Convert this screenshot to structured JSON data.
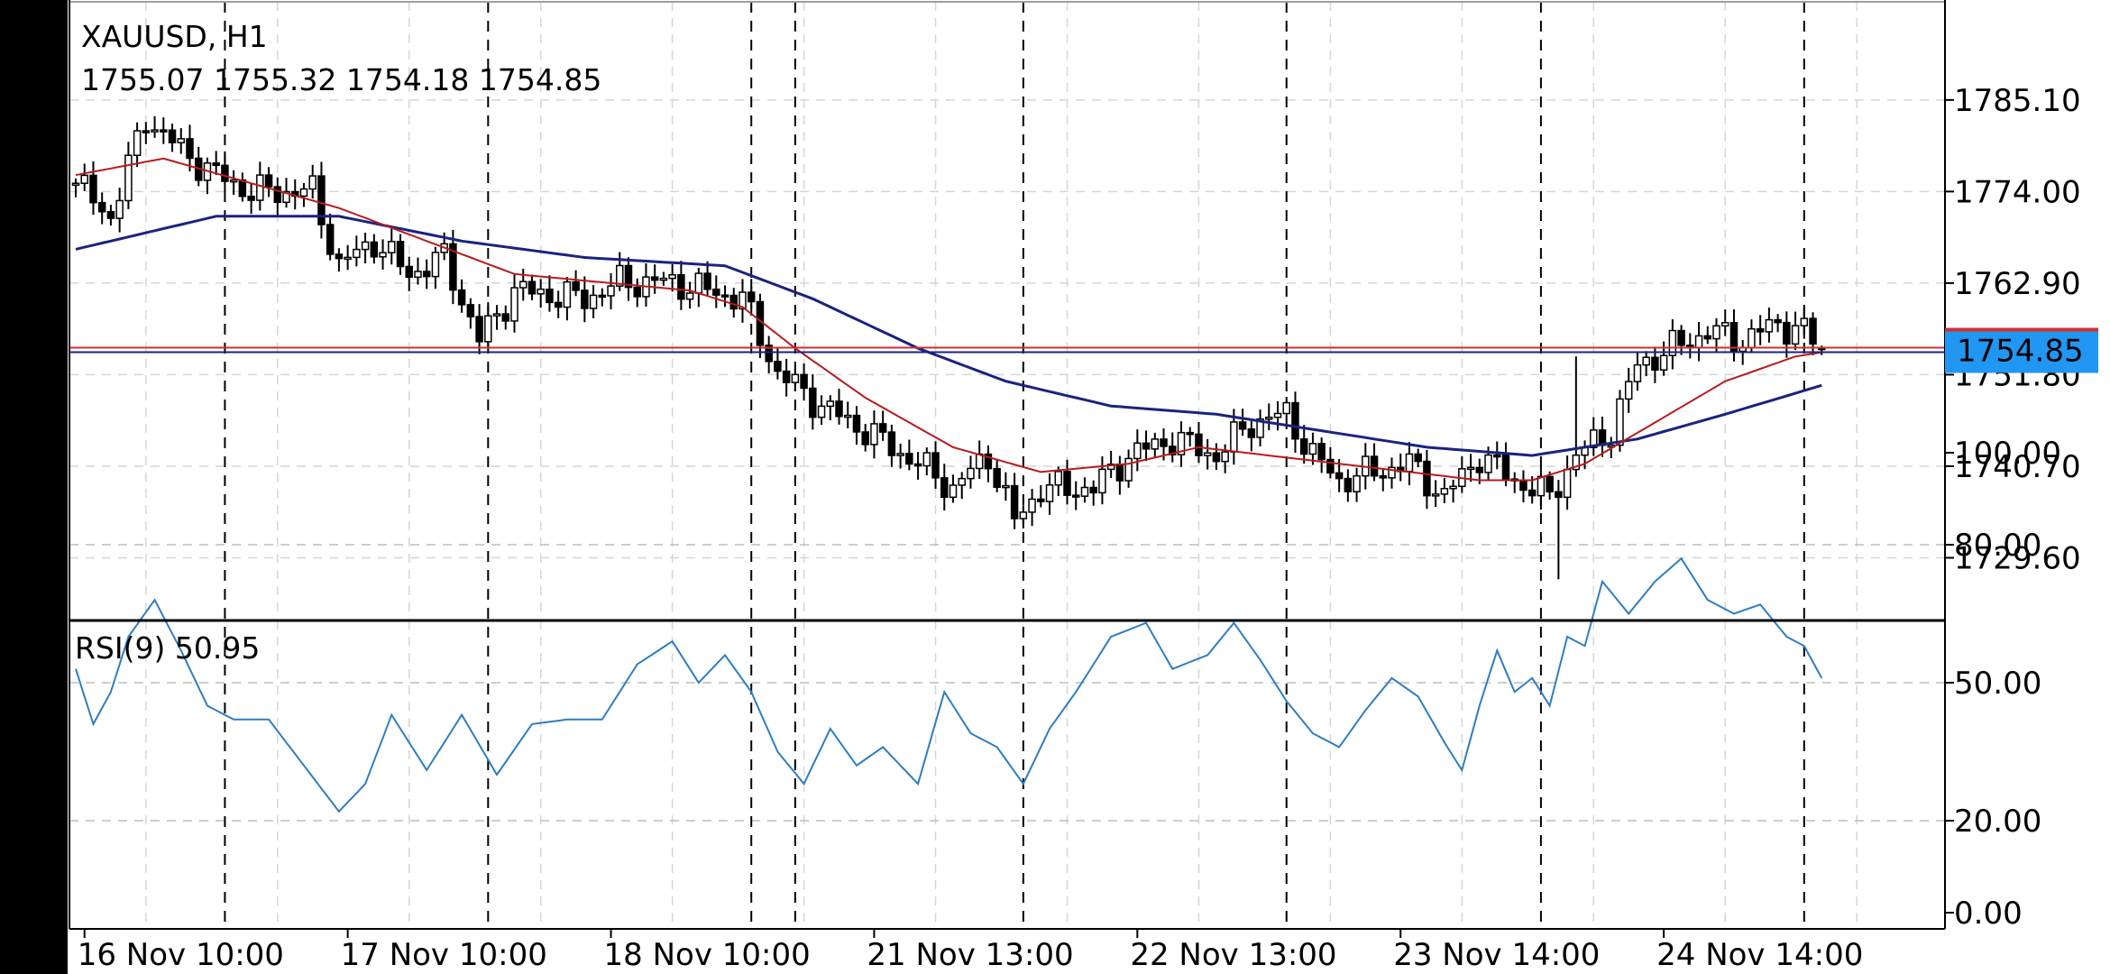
{
  "header": {
    "symbol_timeframe": "XAUUSD, H1",
    "ohlc": "1755.07 1755.32 1754.18 1754.85"
  },
  "current_price": {
    "label": "1754.85",
    "value": 1754.85,
    "badge_color": "#2196f3",
    "line_color": "#d32f2f",
    "line_color_2": "#1a237e"
  },
  "rsi": {
    "label": "RSI(9) 50.95",
    "color": "#2f7dc1"
  },
  "ma_colors": {
    "fast": "#b71c1c",
    "slow": "#1a237e"
  },
  "chart_data": [
    {
      "type": "candlestick",
      "symbol": "XAUUSD",
      "timeframe": "H1",
      "y_ticks": [
        1785.1,
        1774.0,
        1762.9,
        1751.8,
        1740.7,
        1729.6
      ],
      "y_tick_labels": [
        "1785.10",
        "1774.00",
        "1762.90",
        "1751.80",
        "1740.70",
        "1729.60"
      ],
      "ylim": [
        1722.0,
        1797.0
      ],
      "bar_count": 200,
      "grid": true,
      "last_bar": {
        "open": 1755.07,
        "high": 1755.32,
        "low": 1754.18,
        "close": 1754.85
      },
      "x_labels": [
        {
          "label": "16 Nov 10:00",
          "bar": 1
        },
        {
          "label": "17 Nov 10:00",
          "bar": 31
        },
        {
          "label": "18 Nov 10:00",
          "bar": 61
        },
        {
          "label": "21 Nov 13:00",
          "bar": 91
        },
        {
          "label": "22 Nov 13:00",
          "bar": 121
        },
        {
          "label": "23 Nov 14:00",
          "bar": 151
        },
        {
          "label": "24 Nov 14:00",
          "bar": 181
        }
      ],
      "separators": [
        17,
        47,
        77,
        82,
        108,
        138,
        167,
        197
      ],
      "trend_anchors_close": [
        [
          0,
          1775
        ],
        [
          4,
          1771
        ],
        [
          8,
          1783
        ],
        [
          12,
          1779
        ],
        [
          16,
          1776
        ],
        [
          20,
          1774
        ],
        [
          27,
          1774
        ],
        [
          30,
          1765
        ],
        [
          34,
          1768
        ],
        [
          38,
          1764
        ],
        [
          42,
          1766
        ],
        [
          46,
          1756
        ],
        [
          50,
          1762
        ],
        [
          58,
          1761
        ],
        [
          62,
          1763
        ],
        [
          68,
          1763
        ],
        [
          72,
          1762
        ],
        [
          76,
          1761
        ],
        [
          80,
          1752
        ],
        [
          85,
          1748
        ],
        [
          90,
          1745
        ],
        [
          96,
          1741
        ],
        [
          100,
          1738
        ],
        [
          104,
          1742
        ],
        [
          107,
          1734
        ],
        [
          110,
          1738
        ],
        [
          116,
          1738
        ],
        [
          120,
          1742
        ],
        [
          125,
          1744
        ],
        [
          130,
          1742
        ],
        [
          134,
          1746
        ],
        [
          138,
          1747
        ],
        [
          141,
          1742
        ],
        [
          144,
          1739
        ],
        [
          148,
          1740
        ],
        [
          152,
          1741
        ],
        [
          156,
          1737
        ],
        [
          160,
          1742
        ],
        [
          164,
          1739
        ],
        [
          168,
          1737
        ],
        [
          171,
          1742
        ],
        [
          175,
          1745
        ],
        [
          178,
          1753
        ],
        [
          182,
          1755
        ],
        [
          186,
          1757
        ],
        [
          190,
          1756
        ],
        [
          194,
          1758
        ],
        [
          197,
          1757
        ],
        [
          199,
          1754.85
        ]
      ],
      "ma_fast_anchors": [
        [
          0,
          1776
        ],
        [
          10,
          1778
        ],
        [
          20,
          1775
        ],
        [
          30,
          1772
        ],
        [
          40,
          1768
        ],
        [
          50,
          1764
        ],
        [
          60,
          1763
        ],
        [
          70,
          1762
        ],
        [
          76,
          1760
        ],
        [
          82,
          1755
        ],
        [
          90,
          1749
        ],
        [
          100,
          1743
        ],
        [
          110,
          1740
        ],
        [
          120,
          1741
        ],
        [
          128,
          1743
        ],
        [
          136,
          1742
        ],
        [
          144,
          1741
        ],
        [
          152,
          1740
        ],
        [
          160,
          1739
        ],
        [
          166,
          1739
        ],
        [
          172,
          1741
        ],
        [
          180,
          1746
        ],
        [
          188,
          1751
        ],
        [
          196,
          1754
        ],
        [
          199,
          1754.5
        ]
      ],
      "ma_slow_anchors": [
        [
          0,
          1767
        ],
        [
          16,
          1771
        ],
        [
          30,
          1771
        ],
        [
          44,
          1768
        ],
        [
          58,
          1766
        ],
        [
          74,
          1765
        ],
        [
          84,
          1761
        ],
        [
          96,
          1755
        ],
        [
          106,
          1751
        ],
        [
          118,
          1748
        ],
        [
          130,
          1747
        ],
        [
          142,
          1745
        ],
        [
          154,
          1743
        ],
        [
          166,
          1742
        ],
        [
          178,
          1744
        ],
        [
          188,
          1747
        ],
        [
          199,
          1750.5
        ]
      ]
    },
    {
      "type": "line",
      "indicator": "RSI(9)",
      "value": 50.95,
      "y_ticks": [
        100,
        80,
        50,
        20,
        0
      ],
      "y_tick_labels": [
        "100.00",
        "80.00",
        "50.00",
        "20.00",
        "0.00"
      ],
      "ylim": [
        0,
        100
      ],
      "dashed_gridlines": [
        80,
        50,
        20
      ],
      "anchors": [
        [
          0,
          53
        ],
        [
          2,
          41
        ],
        [
          4,
          48
        ],
        [
          6,
          60
        ],
        [
          9,
          68
        ],
        [
          12,
          57
        ],
        [
          15,
          45
        ],
        [
          18,
          42
        ],
        [
          22,
          42
        ],
        [
          26,
          32
        ],
        [
          30,
          22
        ],
        [
          33,
          28
        ],
        [
          36,
          43
        ],
        [
          40,
          31
        ],
        [
          44,
          43
        ],
        [
          48,
          30
        ],
        [
          52,
          41
        ],
        [
          56,
          42
        ],
        [
          60,
          42
        ],
        [
          64,
          54
        ],
        [
          68,
          59
        ],
        [
          71,
          50
        ],
        [
          74,
          56
        ],
        [
          77,
          48
        ],
        [
          80,
          35
        ],
        [
          83,
          28
        ],
        [
          86,
          40
        ],
        [
          89,
          32
        ],
        [
          92,
          36
        ],
        [
          96,
          28
        ],
        [
          99,
          48
        ],
        [
          102,
          39
        ],
        [
          105,
          36
        ],
        [
          108,
          28
        ],
        [
          111,
          40
        ],
        [
          114,
          48
        ],
        [
          118,
          60
        ],
        [
          122,
          63
        ],
        [
          125,
          53
        ],
        [
          129,
          56
        ],
        [
          132,
          63
        ],
        [
          135,
          55
        ],
        [
          138,
          46
        ],
        [
          141,
          39
        ],
        [
          144,
          36
        ],
        [
          147,
          44
        ],
        [
          150,
          51
        ],
        [
          153,
          47
        ],
        [
          156,
          37
        ],
        [
          158,
          31
        ],
        [
          160,
          45
        ],
        [
          162,
          57
        ],
        [
          164,
          48
        ],
        [
          166,
          51
        ],
        [
          168,
          45
        ],
        [
          170,
          60
        ],
        [
          172,
          58
        ],
        [
          174,
          72
        ],
        [
          177,
          65
        ],
        [
          180,
          72
        ],
        [
          183,
          77
        ],
        [
          186,
          68
        ],
        [
          189,
          65
        ],
        [
          192,
          67
        ],
        [
          195,
          60
        ],
        [
          197,
          58
        ],
        [
          199,
          51
        ]
      ]
    }
  ]
}
